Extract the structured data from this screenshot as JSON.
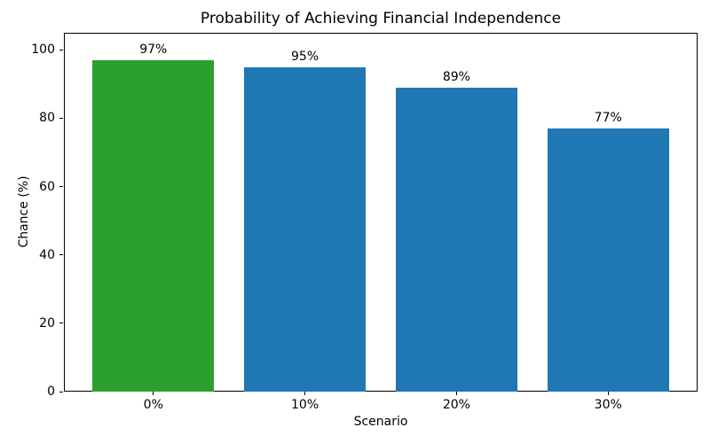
{
  "chart_data": {
    "type": "bar",
    "title": "Probability of Achieving Financial Independence",
    "xlabel": "Scenario",
    "ylabel": "Chance (%)",
    "categories": [
      "0%",
      "10%",
      "20%",
      "30%"
    ],
    "values": [
      97,
      95,
      89,
      77
    ],
    "bar_labels": [
      "97%",
      "95%",
      "89%",
      "77%"
    ],
    "bar_colors": [
      "#2ca02c",
      "#1f77b4",
      "#1f77b4",
      "#1f77b4"
    ],
    "bar_width": 0.8,
    "xlim": [
      -0.59,
      3.59
    ],
    "ylim": [
      0,
      105
    ],
    "yticks": [
      0,
      20,
      40,
      60,
      80,
      100
    ],
    "grid": false,
    "legend": "none",
    "background_color": "#ffffff",
    "text_color": "#000000",
    "frame_color": "#000000"
  }
}
